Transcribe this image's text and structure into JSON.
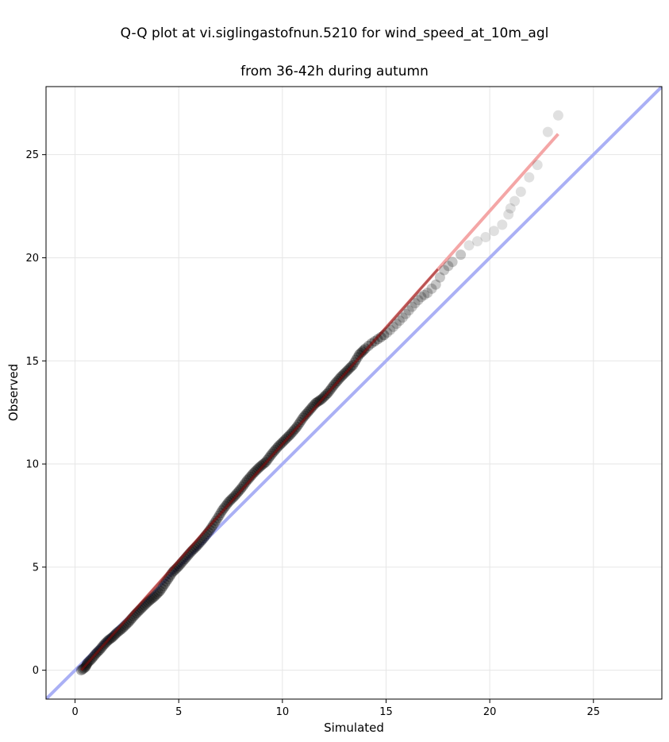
{
  "chart_data": {
    "type": "scatter",
    "title_line1": "Q-Q plot at vi.siglingastofnun.5210 for wind_speed_at_10m_agl",
    "title_line2": "from 36-42h during autumn",
    "xlabel": "Simulated",
    "ylabel": "Observed",
    "xlim": [
      -1.4,
      28.3
    ],
    "ylim": [
      -1.4,
      28.3
    ],
    "xticks": [
      0,
      5,
      10,
      15,
      20,
      25
    ],
    "yticks": [
      0,
      5,
      10,
      15,
      20,
      25
    ],
    "grid": true,
    "colors": {
      "points": "#000000",
      "identity_line": "#aab0f5",
      "fit_line": "#f4a6a6",
      "fit_line_dense": "#8b1010"
    },
    "series": [
      {
        "type": "scatter",
        "points": [
          [
            0.3,
            0.0
          ],
          [
            0.5,
            0.15
          ],
          [
            0.6,
            0.35
          ],
          [
            0.8,
            0.55
          ],
          [
            1.0,
            0.8
          ],
          [
            1.2,
            1.0
          ],
          [
            1.4,
            1.25
          ],
          [
            1.6,
            1.45
          ],
          [
            1.8,
            1.6
          ],
          [
            2.0,
            1.8
          ],
          [
            2.3,
            2.05
          ],
          [
            2.6,
            2.35
          ],
          [
            2.9,
            2.7
          ],
          [
            3.2,
            3.0
          ],
          [
            3.5,
            3.3
          ],
          [
            3.8,
            3.55
          ],
          [
            4.1,
            3.85
          ],
          [
            4.4,
            4.3
          ],
          [
            4.7,
            4.75
          ],
          [
            5.0,
            5.05
          ],
          [
            5.3,
            5.4
          ],
          [
            5.6,
            5.75
          ],
          [
            5.9,
            6.05
          ],
          [
            6.2,
            6.4
          ],
          [
            6.5,
            6.8
          ],
          [
            6.8,
            7.25
          ],
          [
            7.1,
            7.75
          ],
          [
            7.4,
            8.15
          ],
          [
            7.7,
            8.45
          ],
          [
            8.0,
            8.8
          ],
          [
            8.3,
            9.2
          ],
          [
            8.6,
            9.55
          ],
          [
            8.9,
            9.85
          ],
          [
            9.2,
            10.1
          ],
          [
            9.5,
            10.5
          ],
          [
            9.8,
            10.85
          ],
          [
            10.1,
            11.15
          ],
          [
            10.4,
            11.45
          ],
          [
            10.7,
            11.8
          ],
          [
            11.0,
            12.25
          ],
          [
            11.3,
            12.6
          ],
          [
            11.6,
            12.95
          ],
          [
            11.9,
            13.15
          ],
          [
            12.2,
            13.45
          ],
          [
            12.5,
            13.85
          ],
          [
            12.8,
            14.2
          ],
          [
            13.1,
            14.5
          ],
          [
            13.4,
            14.8
          ],
          [
            13.7,
            15.3
          ],
          [
            14.0,
            15.6
          ],
          [
            14.3,
            15.85
          ],
          [
            14.6,
            16.05
          ],
          [
            14.9,
            16.25
          ],
          [
            15.2,
            16.5
          ],
          [
            15.5,
            16.8
          ],
          [
            15.8,
            17.1
          ],
          [
            16.1,
            17.45
          ],
          [
            16.4,
            17.8
          ],
          [
            16.7,
            18.1
          ],
          [
            17.0,
            18.3
          ],
          [
            17.4,
            18.7
          ],
          [
            17.8,
            19.4
          ],
          [
            18.2,
            19.8
          ],
          [
            18.6,
            20.15
          ],
          [
            19.0,
            20.6
          ],
          [
            19.4,
            20.8
          ],
          [
            19.8,
            21.0
          ],
          [
            20.2,
            21.3
          ],
          [
            20.6,
            21.6
          ],
          [
            20.9,
            22.1
          ],
          [
            21.0,
            22.4
          ],
          [
            21.2,
            22.75
          ],
          [
            21.5,
            23.2
          ],
          [
            21.9,
            23.9
          ],
          [
            22.3,
            24.5
          ],
          [
            22.8,
            26.1
          ],
          [
            23.3,
            26.9
          ]
        ]
      },
      {
        "type": "line",
        "points": [
          [
            -1.4,
            -1.4
          ],
          [
            28.3,
            28.3
          ]
        ]
      },
      {
        "type": "line",
        "points": [
          [
            0.3,
            0.0
          ],
          [
            23.3,
            26.0
          ]
        ]
      }
    ]
  }
}
